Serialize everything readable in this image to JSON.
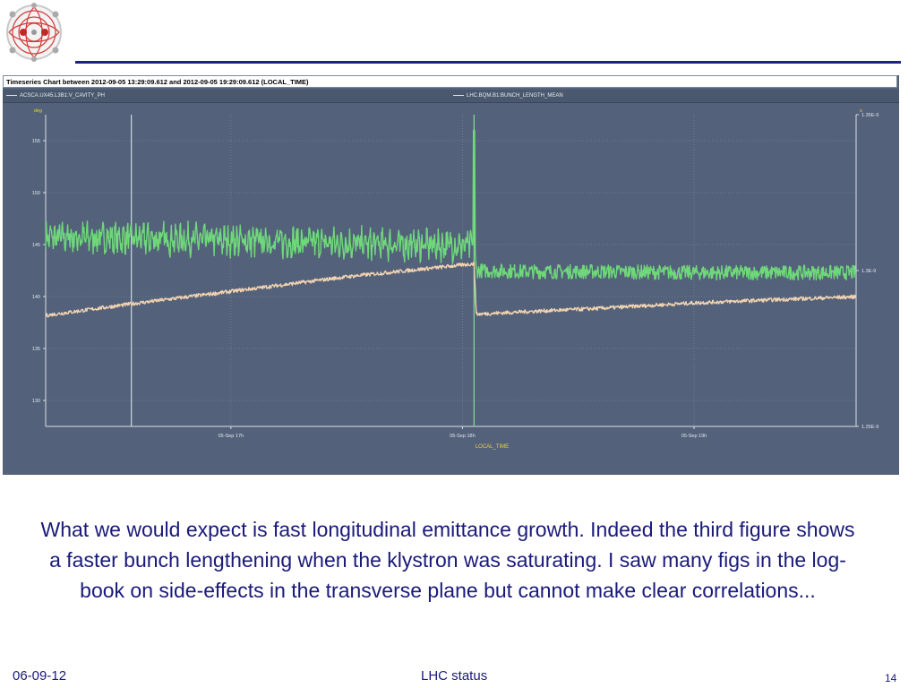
{
  "slide": {
    "caption": "What we would expect is fast longitudinal emittance growth. Indeed the third figure shows a faster bunch lengthening when the klystron was saturating. I saw many figs in the log-book on side-effects in the transverse plane but cannot make clear correlations...",
    "footer_date": "06-09-12",
    "footer_center": "LHC status",
    "page_number": "14",
    "accent_color": "#1a237e"
  },
  "chart_data": {
    "type": "line",
    "title": "Timeseries Chart between 2012-09-05 13:29:09.612 and 2012-09-05 19:29:09.612 (LOCAL_TIME)",
    "xlabel": "LOCAL_TIME",
    "x_ticks": [
      "05-Sep 17h",
      "05-Sep 18h",
      "05-Sep 19h"
    ],
    "x_tick_hours": [
      17,
      18,
      19
    ],
    "xlim_hours": [
      16.2,
      19.7
    ],
    "y_left": {
      "unit": "deg",
      "ticks": [
        130,
        135,
        140,
        145,
        150,
        155
      ],
      "lim": [
        127.5,
        157.5
      ]
    },
    "y_right": {
      "unit": "s",
      "ticks": [
        "1.25E-9",
        "1.3E-9",
        "1.35E-9"
      ],
      "tick_values": [
        1.25e-09,
        1.3e-09,
        1.35e-09
      ],
      "lim": [
        1.25e-09,
        1.35e-09
      ]
    },
    "markers_hours": [
      16.57,
      18.05
    ],
    "series": [
      {
        "name": "ACSCA.UX45.L3B1:V_CAVITY_PH",
        "axis": "left",
        "color": "#6fd87a",
        "x": [
          16.2,
          16.57,
          17.0,
          17.5,
          18.0,
          18.05,
          18.06,
          18.3,
          18.6,
          19.0,
          19.3,
          19.7
        ],
        "y": [
          145.7,
          145.6,
          145.4,
          145.1,
          144.9,
          144.9,
          142.5,
          142.4,
          142.4,
          142.3,
          142.3,
          142.3
        ],
        "noise": 0.7
      },
      {
        "name": "LHC.BQM.B1:BUNCH_LENGTH_MEAN",
        "axis": "right",
        "color": "#f2d3b1",
        "x": [
          16.2,
          16.57,
          17.0,
          17.5,
          18.0,
          18.05,
          18.06,
          18.3,
          18.6,
          19.0,
          19.3,
          19.7
        ],
        "y": [
          1.2856e-09,
          1.2893e-09,
          1.2933e-09,
          1.298e-09,
          1.3018e-09,
          1.3022e-09,
          1.286e-09,
          1.2869e-09,
          1.2879e-09,
          1.2896e-09,
          1.2905e-09,
          1.2916e-09
        ],
        "noise": 6e-13
      }
    ]
  }
}
